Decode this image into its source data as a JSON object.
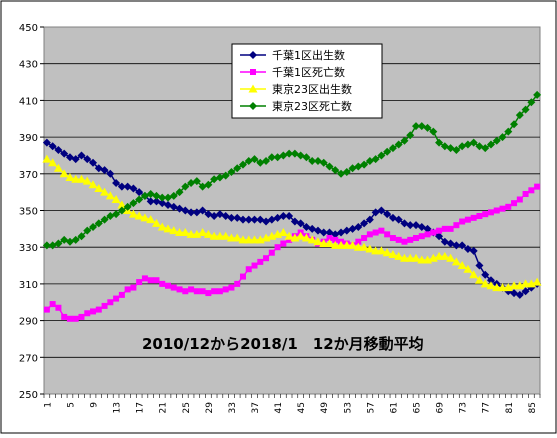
{
  "chart_data": {
    "type": "line",
    "annotation": "2010/12から2018/1　12か月移動平均",
    "ylim": [
      250,
      450
    ],
    "y_ticks": [
      250,
      270,
      290,
      310,
      330,
      350,
      370,
      390,
      410,
      430,
      450
    ],
    "x_ticks": [
      1,
      5,
      9,
      13,
      17,
      21,
      25,
      29,
      33,
      37,
      41,
      45,
      49,
      53,
      57,
      61,
      65,
      69,
      73,
      77,
      81,
      85
    ],
    "x_start": 1,
    "x_end": 86,
    "grid": "horizontal",
    "legend_position": "top-center",
    "plot_background": "#c0c0c0",
    "series": [
      {
        "name": "千葉1区出生数",
        "color": "#000080",
        "marker": "diamond",
        "values": [
          387,
          385,
          383,
          381,
          379,
          378,
          380,
          378,
          376,
          373,
          372,
          370,
          365,
          363,
          363,
          362,
          360,
          358,
          355,
          355,
          354,
          353,
          352,
          351,
          350,
          349,
          349,
          350,
          348,
          347,
          348,
          347,
          346,
          346,
          345,
          345,
          345,
          345,
          344,
          345,
          346,
          347,
          347,
          344,
          343,
          341,
          340,
          339,
          338,
          338,
          337,
          338,
          339,
          340,
          341,
          343,
          345,
          349,
          350,
          348,
          346,
          345,
          343,
          342,
          342,
          341,
          340,
          338,
          336,
          333,
          332,
          331,
          331,
          329,
          328,
          320,
          315,
          312,
          310,
          308,
          306,
          305,
          304,
          306,
          308,
          310
        ]
      },
      {
        "name": "千葉1区死亡数",
        "color": "#ff00ff",
        "marker": "square",
        "values": [
          296,
          299,
          297,
          292,
          291,
          291,
          292,
          294,
          295,
          296,
          298,
          300,
          302,
          304,
          307,
          308,
          311,
          313,
          312,
          312,
          310,
          309,
          308,
          307,
          306,
          307,
          306,
          306,
          305,
          306,
          306,
          307,
          308,
          310,
          314,
          318,
          320,
          322,
          324,
          327,
          330,
          332,
          334,
          336,
          338,
          336,
          334,
          332,
          333,
          335,
          334,
          333,
          332,
          331,
          333,
          335,
          337,
          338,
          339,
          337,
          335,
          334,
          333,
          334,
          335,
          336,
          337,
          338,
          339,
          340,
          340,
          342,
          344,
          345,
          346,
          347,
          348,
          349,
          350,
          351,
          352,
          354,
          356,
          359,
          361,
          363
        ]
      },
      {
        "name": "東京23区出生数",
        "color": "#ffff00",
        "marker": "triangle",
        "values": [
          378,
          376,
          373,
          370,
          368,
          367,
          367,
          366,
          364,
          362,
          360,
          358,
          356,
          353,
          350,
          348,
          347,
          346,
          345,
          343,
          341,
          340,
          339,
          338,
          338,
          337,
          337,
          338,
          337,
          336,
          336,
          336,
          335,
          335,
          334,
          334,
          334,
          334,
          335,
          336,
          337,
          338,
          336,
          335,
          336,
          335,
          334,
          333,
          332,
          332,
          331,
          331,
          331,
          331,
          330,
          330,
          329,
          328,
          328,
          327,
          326,
          325,
          324,
          324,
          324,
          323,
          323,
          324,
          325,
          325,
          324,
          322,
          320,
          318,
          315,
          312,
          310,
          309,
          308,
          308,
          308,
          309,
          309,
          310,
          310,
          311
        ]
      },
      {
        "name": "東京23区死亡数",
        "color": "#008000",
        "marker": "diamond",
        "values": [
          331,
          331,
          332,
          334,
          333,
          334,
          336,
          339,
          341,
          343,
          345,
          347,
          348,
          350,
          352,
          354,
          356,
          358,
          359,
          358,
          357,
          357,
          358,
          360,
          363,
          365,
          366,
          363,
          364,
          367,
          368,
          369,
          371,
          373,
          375,
          377,
          378,
          376,
          377,
          379,
          379,
          380,
          381,
          381,
          380,
          379,
          377,
          377,
          376,
          374,
          372,
          370,
          371,
          373,
          374,
          375,
          377,
          378,
          380,
          382,
          384,
          386,
          388,
          391,
          396,
          396,
          395,
          393,
          387,
          385,
          384,
          383,
          385,
          386,
          387,
          385,
          384,
          386,
          388,
          390,
          393,
          397,
          402,
          405,
          409,
          413
        ]
      }
    ]
  }
}
